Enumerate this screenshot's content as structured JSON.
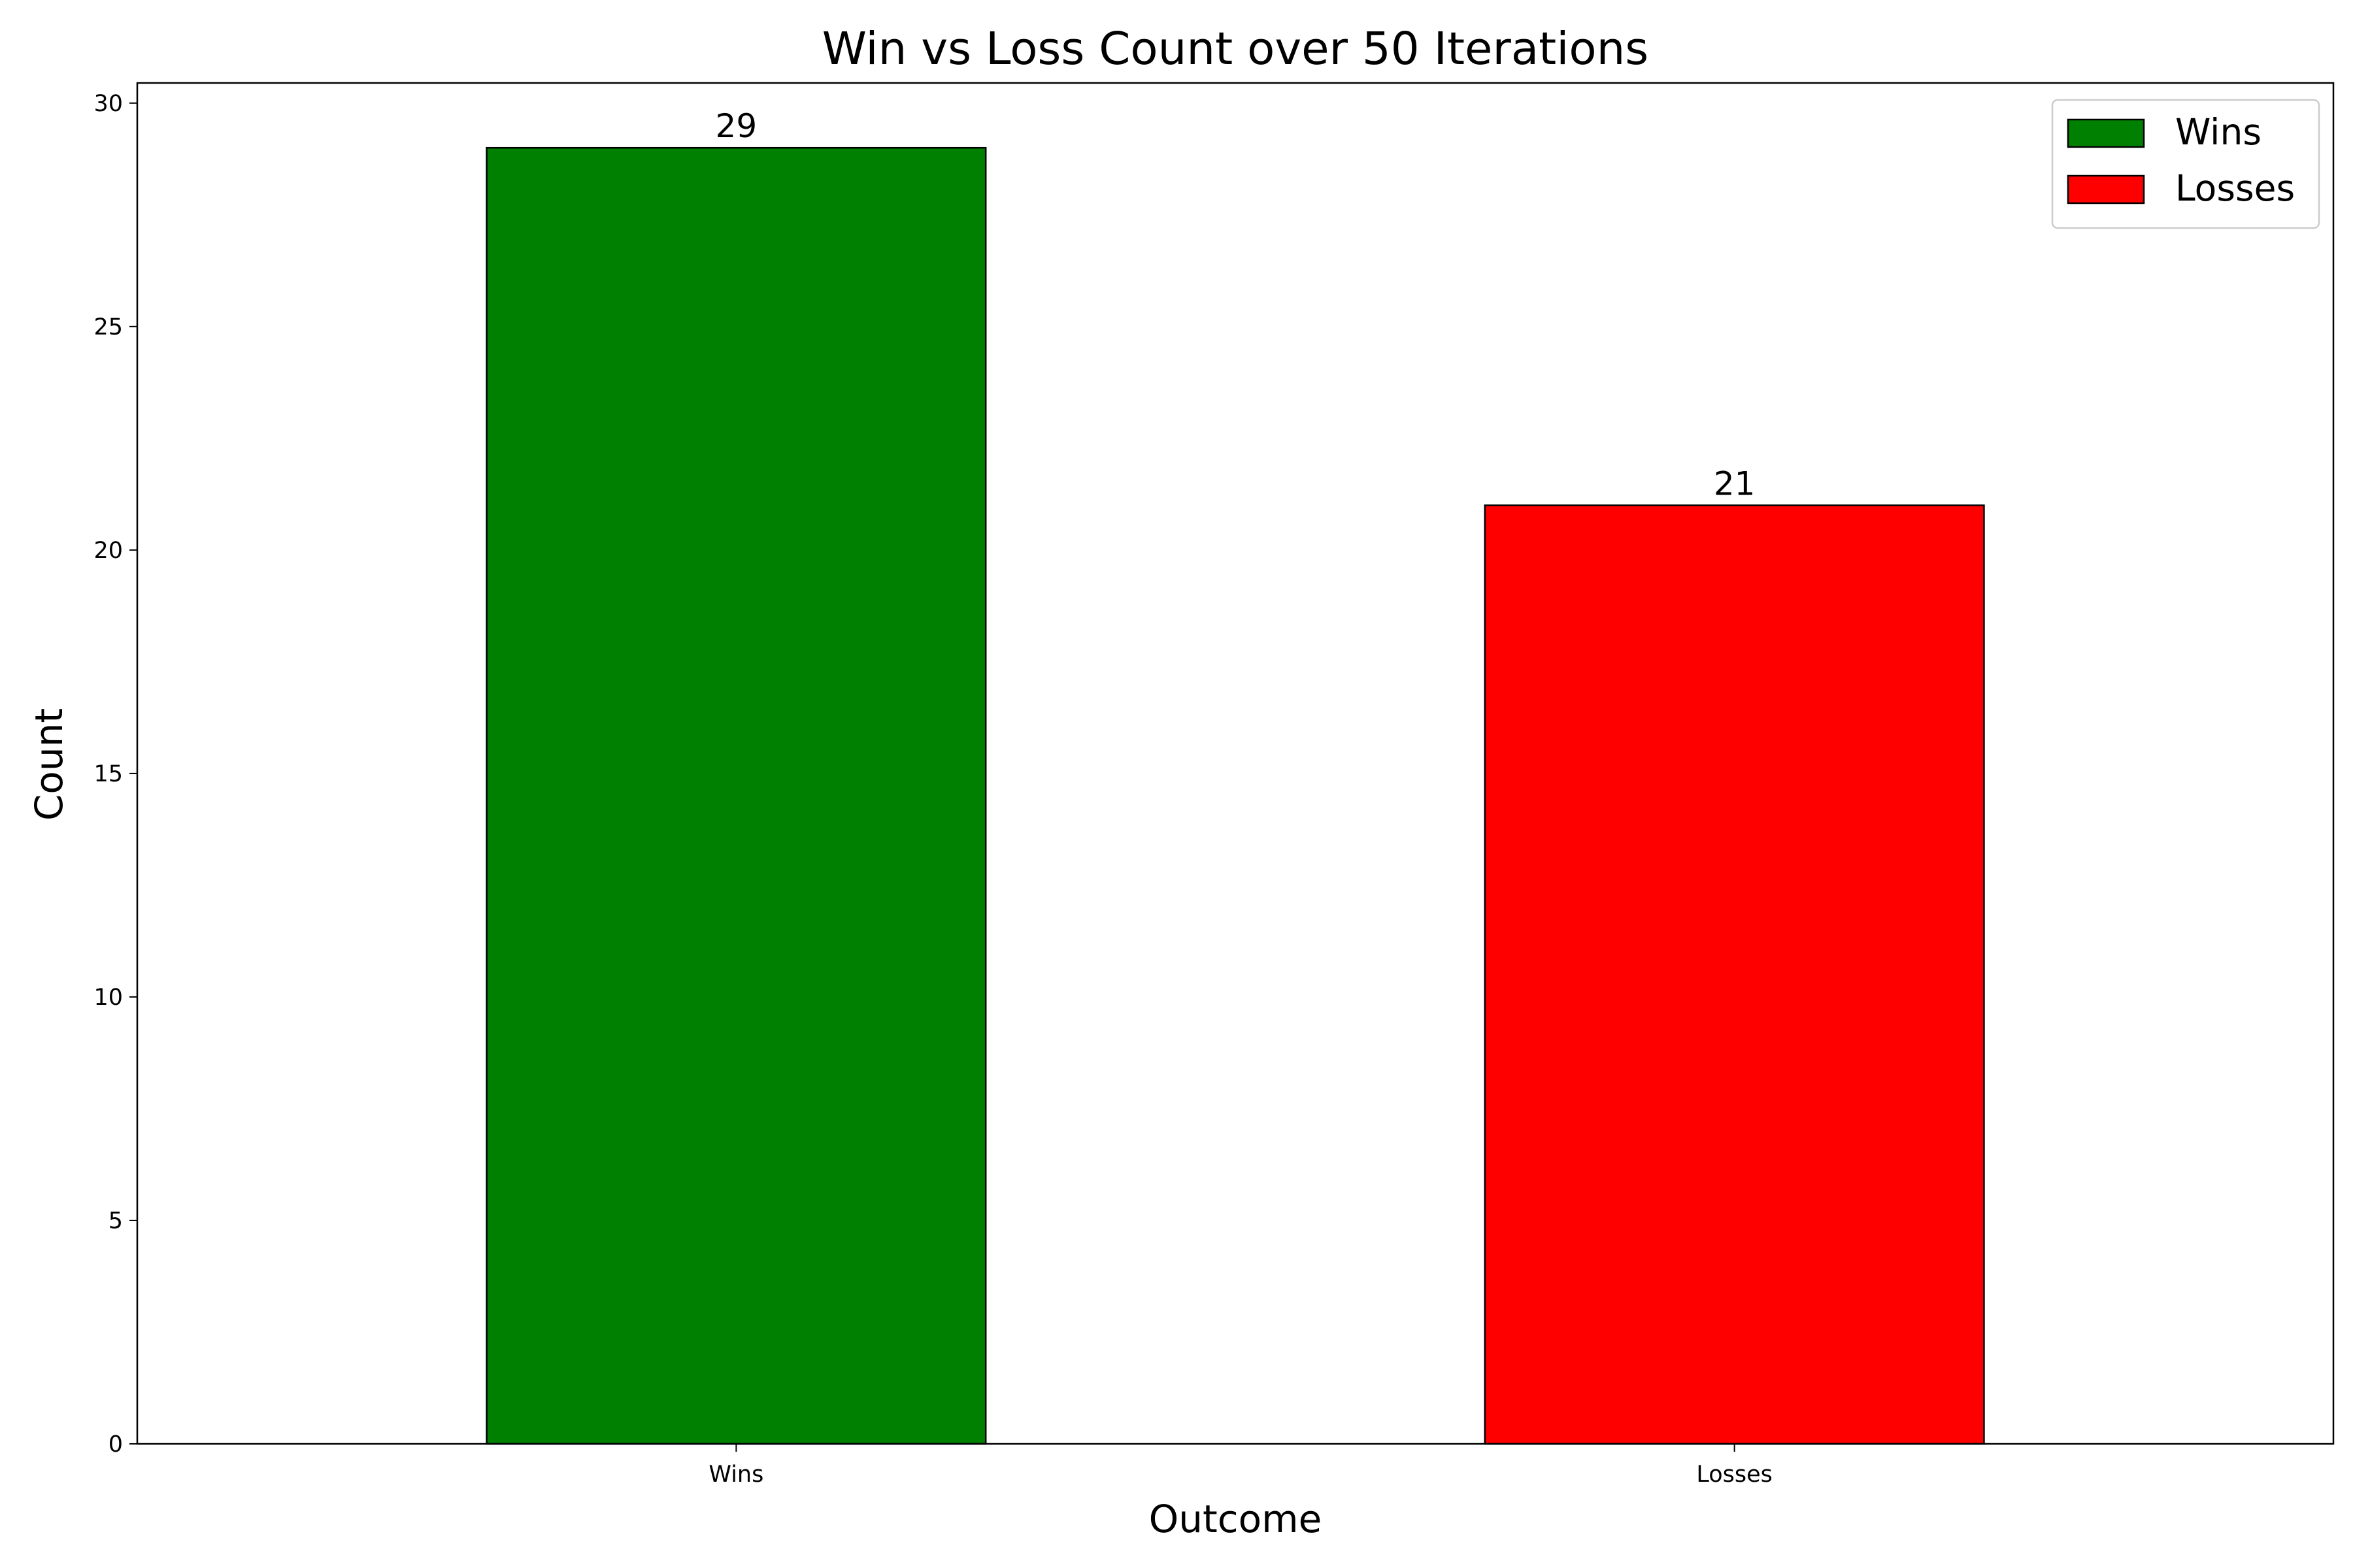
{
  "chart_data": {
    "type": "bar",
    "title": "Win vs Loss Count over 50 Iterations",
    "xlabel": "Outcome",
    "ylabel": "Count",
    "categories": [
      "Wins",
      "Losses"
    ],
    "values": [
      29,
      21
    ],
    "data_labels": [
      "29",
      "21"
    ],
    "colors": [
      "#008000",
      "#ff0000"
    ],
    "edge_color": "#000000",
    "ylim": [
      0,
      30.45
    ],
    "yticks": [
      0,
      5,
      10,
      15,
      20,
      25,
      30
    ],
    "grid": false,
    "legend": {
      "placement": "top-right",
      "entries": [
        {
          "label": "Wins",
          "color": "#008000"
        },
        {
          "label": "Losses",
          "color": "#ff0000"
        }
      ]
    }
  }
}
